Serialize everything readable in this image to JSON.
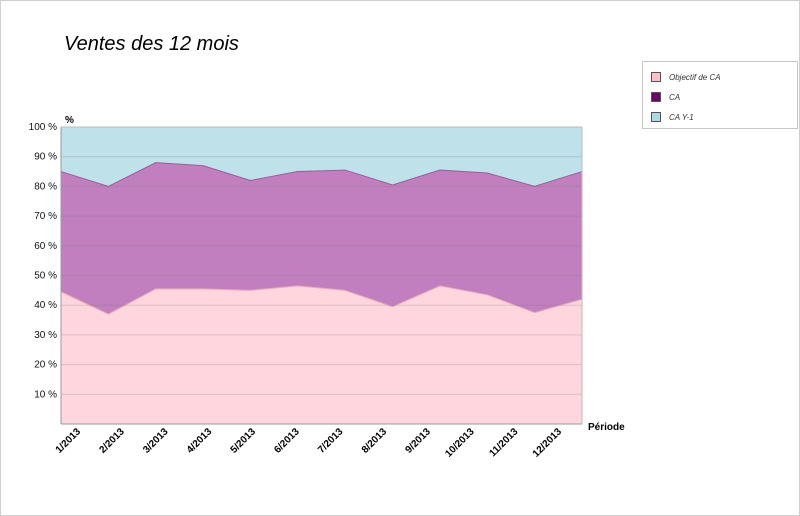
{
  "chart_data": {
    "type": "area",
    "stacked_percent": true,
    "title": "Ventes des 12 mois",
    "xlabel": "Période",
    "ylabel": "%",
    "categories": [
      "1/2013",
      "2/2013",
      "3/2013",
      "4/2013",
      "5/2013",
      "6/2013",
      "7/2013",
      "8/2013",
      "9/2013",
      "10/2013",
      "11/2013",
      "12/2013"
    ],
    "ylim": [
      0,
      100
    ],
    "yticks": [
      "10 %",
      "20 %",
      "30 %",
      "40 %",
      "50 %",
      "60 %",
      "70 %",
      "80 %",
      "90 %",
      "100 %"
    ],
    "grid": true,
    "legend_position": "top-right",
    "series": [
      {
        "name": "Objectif de CA",
        "color": "#ffd6de",
        "swatch": "#ffc0cb",
        "cumulative": [
          44.5,
          37,
          45.5,
          45.5,
          45,
          46.5,
          45,
          39.5,
          46.5,
          43.5,
          37.5,
          42
        ]
      },
      {
        "name": "CA",
        "color": "#c17fbf",
        "swatch": "#6a006a",
        "cumulative": [
          85,
          80,
          88,
          87,
          82,
          85,
          85.5,
          80.5,
          85.5,
          84.5,
          80,
          85
        ]
      },
      {
        "name": "CA Y-1",
        "color": "#bfe1ea",
        "swatch": "#add8e6",
        "cumulative": [
          100,
          100,
          100,
          100,
          100,
          100,
          100,
          100,
          100,
          100,
          100,
          100
        ]
      }
    ]
  }
}
